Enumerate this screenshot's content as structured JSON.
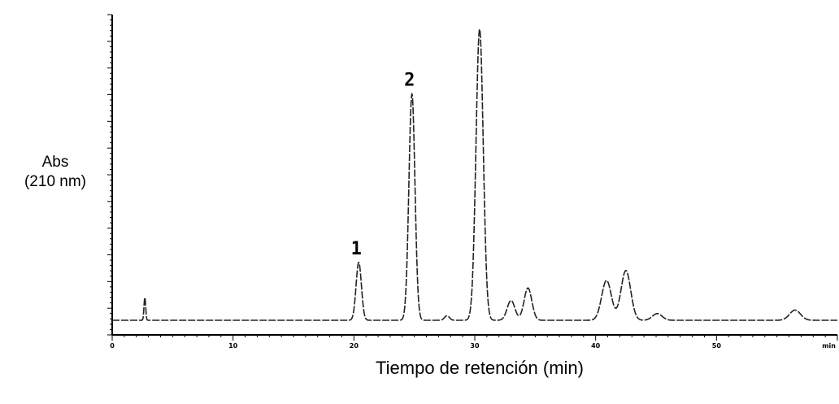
{
  "chart_data": {
    "type": "line",
    "ylabel_line1": "Abs",
    "ylabel_line2": "(210 nm)",
    "xlabel": "Tiempo de retención (min)",
    "x_unit_label": "min",
    "xlim": [
      0,
      60
    ],
    "ylim": [
      0,
      100
    ],
    "x_ticks": [
      0,
      10,
      20,
      30,
      40,
      50
    ],
    "y_axis_numbers_shown": false,
    "baseline": 0,
    "annotations": [
      {
        "label": "1",
        "x": 20.4
      },
      {
        "label": "2",
        "x": 24.8
      }
    ],
    "peaks": [
      {
        "x": 2.7,
        "height": 7.8,
        "width": 0.07
      },
      {
        "x": 20.4,
        "height": 19.9,
        "width": 0.22
      },
      {
        "x": 24.8,
        "height": 77.8,
        "width": 0.25
      },
      {
        "x": 27.7,
        "height": 1.6,
        "width": 0.2
      },
      {
        "x": 30.4,
        "height": 100,
        "width": 0.3
      },
      {
        "x": 33.0,
        "height": 6.8,
        "width": 0.32
      },
      {
        "x": 34.4,
        "height": 11.1,
        "width": 0.32
      },
      {
        "x": 40.9,
        "height": 13.7,
        "width": 0.4
      },
      {
        "x": 42.5,
        "height": 17.1,
        "width": 0.4
      },
      {
        "x": 45.1,
        "height": 2.3,
        "width": 0.4
      },
      {
        "x": 56.5,
        "height": 3.5,
        "width": 0.45
      }
    ]
  }
}
